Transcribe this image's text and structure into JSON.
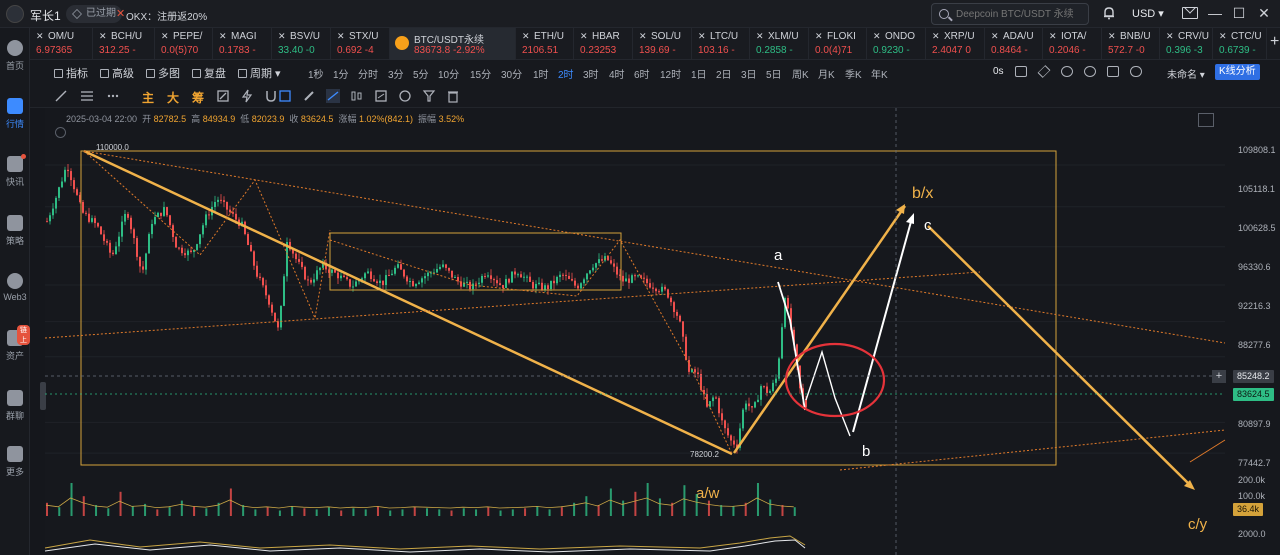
{
  "topbar": {
    "user_name": "军长1",
    "user_badge": "已过期",
    "promo_close": "✕",
    "promo_text": "OKX：注册返20%",
    "search_placeholder": "Deepcoin BTC/USDT 永续",
    "currency": "USD ▾",
    "window_min": "—",
    "window_max": "☐",
    "window_close": "✕"
  },
  "sidebar": {
    "items": [
      {
        "label": "首页",
        "icon": "home-icon"
      },
      {
        "label": "行情",
        "icon": "market-icon",
        "active": true
      },
      {
        "label": "快讯",
        "icon": "news-icon"
      },
      {
        "label": "策略",
        "icon": "robot-icon"
      },
      {
        "label": "Web3",
        "icon": "web3-icon"
      },
      {
        "label": "资产",
        "icon": "wallet-icon",
        "badge": "链上"
      },
      {
        "label": "群聊",
        "icon": "chat-icon"
      },
      {
        "label": "更多",
        "icon": "more-icon"
      }
    ]
  },
  "symbol_tabs": [
    {
      "name": "OM/U",
      "price": "6.97365",
      "trend": "down"
    },
    {
      "name": "BCH/U",
      "price": "312.25 -",
      "trend": "down"
    },
    {
      "name": "PEPE/",
      "price": "0.0(5)70",
      "trend": "down"
    },
    {
      "name": "MAGI",
      "price": "0.1783 -",
      "trend": "down"
    },
    {
      "name": "BSV/U",
      "price": "33.40 -0",
      "trend": "up"
    },
    {
      "name": "STX/U",
      "price": "0.692 -4",
      "trend": "down"
    },
    {
      "name": "BTC/USDT永续",
      "price": "83673.8",
      "change": "-2.92%",
      "trend": "down",
      "active": true
    },
    {
      "name": "ETH/U",
      "price": "2106.51",
      "trend": "down"
    },
    {
      "name": "HBAR",
      "price": "0.23253",
      "trend": "down"
    },
    {
      "name": "SOL/U",
      "price": "139.69 -",
      "trend": "down"
    },
    {
      "name": "LTC/U",
      "price": "103.16 -",
      "trend": "down"
    },
    {
      "name": "XLM/U",
      "price": "0.2858 -",
      "trend": "up"
    },
    {
      "name": "FLOKI",
      "price": "0.0(4)71",
      "trend": "down"
    },
    {
      "name": "ONDO",
      "price": "0.9230 -",
      "trend": "up"
    },
    {
      "name": "XRP/U",
      "price": "2.4047 0",
      "trend": "down"
    },
    {
      "name": "ADA/U",
      "price": "0.8464 -",
      "trend": "down"
    },
    {
      "name": "IOTA/",
      "price": "0.2046 -",
      "trend": "down"
    },
    {
      "name": "BNB/U",
      "price": "572.7 -0",
      "trend": "down"
    },
    {
      "name": "CRV/U",
      "price": "0.396 -3",
      "trend": "up"
    },
    {
      "name": "CTC/U",
      "price": "0.6739 -",
      "trend": "up"
    }
  ],
  "toolbar": {
    "indicators": "指标",
    "advanced": "高级",
    "multi_chart": "多图",
    "replay": "复盘",
    "period": "周期 ▾",
    "intervals": [
      "1秒",
      "1分",
      "分时",
      "3分",
      "5分",
      "10分",
      "15分",
      "30分",
      "1时",
      "2时",
      "3时",
      "4时",
      "6时",
      "12时",
      "1日",
      "2日",
      "3日",
      "5日",
      "周K",
      "月K",
      "季K",
      "年K"
    ],
    "active_interval": "2时",
    "realtime": "0s",
    "layout_name": "未命名 ▾",
    "kline_analysis": "K线分析"
  },
  "draw_tools": {
    "main": "主",
    "big": "大",
    "chip": "筹"
  },
  "ohlc": {
    "datetime": "2025-03-04 22:00",
    "open_label": "开",
    "open": "82782.5",
    "high_label": "高",
    "high": "84934.9",
    "low_label": "低",
    "low": "82023.9",
    "close_label": "收",
    "close": "83624.5",
    "change_label": "涨幅",
    "change": "1.02%(842.1)",
    "amp_label": "振幅",
    "amp": "3.52%"
  },
  "chart_data": {
    "type": "candlestick",
    "symbol": "BTC/USDT永续",
    "interval": "2时",
    "y_axis_ticks": [
      109808.1,
      105118.1,
      100628.5,
      96330.6,
      92216.3,
      88277.6,
      80897.9,
      77442.7
    ],
    "ylim": [
      76000,
      111500
    ],
    "current_price": 83624.5,
    "crosshair_price": 85248.2,
    "high_marker": "110000.0",
    "low_marker": "78200.2",
    "volume_axis": [
      "200.0k",
      "100.0k"
    ],
    "volume_current": "36.4k",
    "indicator_axis": [
      "2000.0"
    ],
    "close_path": [
      [
        0,
        103500
      ],
      [
        10,
        106500
      ],
      [
        20,
        109900
      ],
      [
        35,
        104500
      ],
      [
        50,
        103000
      ],
      [
        65,
        99500
      ],
      [
        80,
        104800
      ],
      [
        95,
        97500
      ],
      [
        105,
        103500
      ],
      [
        118,
        104900
      ],
      [
        130,
        100500
      ],
      [
        145,
        99800
      ],
      [
        158,
        103700
      ],
      [
        170,
        106100
      ],
      [
        182,
        104600
      ],
      [
        195,
        103000
      ],
      [
        210,
        97500
      ],
      [
        222,
        94500
      ],
      [
        232,
        91000
      ],
      [
        240,
        101500
      ],
      [
        250,
        99000
      ],
      [
        262,
        96500
      ],
      [
        275,
        98500
      ],
      [
        290,
        97500
      ],
      [
        305,
        96200
      ],
      [
        320,
        97800
      ],
      [
        335,
        96500
      ],
      [
        350,
        98400
      ],
      [
        365,
        96500
      ],
      [
        380,
        97500
      ],
      [
        395,
        98500
      ],
      [
        410,
        96800
      ],
      [
        425,
        96000
      ],
      [
        440,
        97900
      ],
      [
        455,
        96200
      ],
      [
        470,
        98000
      ],
      [
        485,
        96300
      ],
      [
        500,
        96000
      ],
      [
        515,
        97500
      ],
      [
        530,
        96100
      ],
      [
        545,
        98600
      ],
      [
        560,
        99300
      ],
      [
        575,
        96800
      ],
      [
        590,
        97100
      ],
      [
        605,
        96300
      ],
      [
        620,
        95500
      ],
      [
        632,
        92500
      ],
      [
        642,
        86500
      ],
      [
        650,
        86500
      ],
      [
        660,
        82500
      ],
      [
        668,
        84000
      ],
      [
        676,
        80500
      ],
      [
        684,
        78800
      ],
      [
        690,
        78400
      ],
      [
        698,
        83500
      ],
      [
        706,
        82000
      ],
      [
        714,
        85000
      ],
      [
        722,
        84200
      ],
      [
        730,
        86000
      ],
      [
        738,
        95300
      ],
      [
        746,
        90000
      ],
      [
        754,
        83800
      ],
      [
        760,
        82500
      ]
    ],
    "volume_bars": [
      12,
      8,
      30,
      18,
      10,
      7,
      22,
      9,
      11,
      6,
      8,
      14,
      9,
      7,
      12,
      25,
      10,
      6,
      8,
      5,
      9,
      7,
      6,
      8,
      5,
      7,
      6,
      9,
      5,
      6,
      8,
      7,
      6,
      5,
      7,
      6,
      8,
      5,
      6,
      7,
      9,
      6,
      8,
      12,
      18,
      10,
      25,
      14,
      22,
      30,
      16,
      12,
      28,
      20,
      14,
      10,
      9,
      12,
      30,
      15,
      10,
      8
    ],
    "annotations": [
      "a",
      "b/x",
      "c",
      "b",
      "a/w",
      "c/y"
    ]
  }
}
